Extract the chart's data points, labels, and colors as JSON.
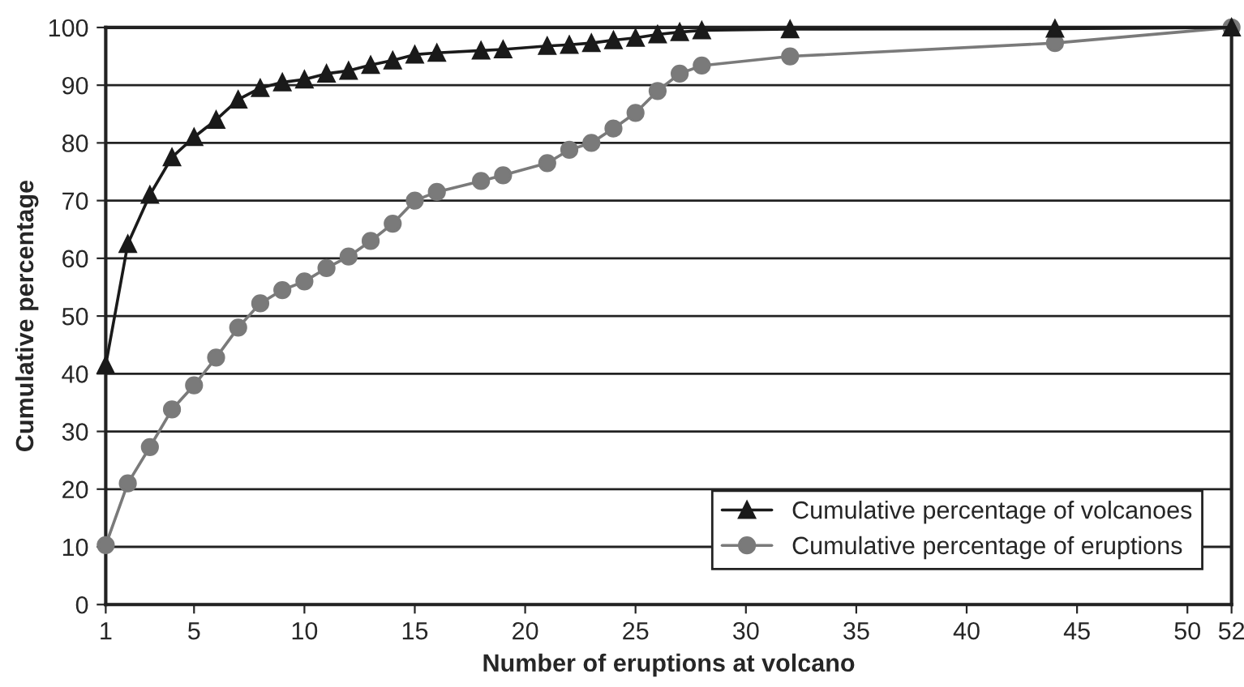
{
  "chart_data": {
    "type": "line",
    "xlabel": "Number of eruptions at volcano",
    "ylabel": "Cumulative percentage",
    "x": [
      1,
      2,
      3,
      4,
      5,
      6,
      7,
      8,
      9,
      10,
      11,
      12,
      13,
      14,
      15,
      16,
      18,
      19,
      21,
      22,
      23,
      24,
      25,
      26,
      27,
      28,
      32,
      44,
      52
    ],
    "series": [
      {
        "name": "Cumulative percentage of volcanoes",
        "color": "#1a1a1a",
        "marker": "triangle",
        "values": [
          41.5,
          62.5,
          71,
          77.5,
          81,
          84,
          87.5,
          89.5,
          90.5,
          91,
          92,
          92.5,
          93.5,
          94.3,
          95.3,
          95.6,
          96,
          96.2,
          96.8,
          97,
          97.3,
          97.8,
          98.2,
          98.8,
          99.2,
          99.5,
          99.7,
          99.8,
          100
        ]
      },
      {
        "name": "Cumulative percentage of eruptions",
        "color": "#7a7a7a",
        "marker": "circle",
        "values": [
          10.3,
          21,
          27.3,
          33.8,
          38,
          42.8,
          48,
          52.2,
          54.5,
          56,
          58.3,
          60.3,
          63,
          66,
          70,
          71.5,
          73.4,
          74.4,
          76.5,
          78.8,
          80,
          82.5,
          85.2,
          89,
          92,
          93.4,
          95,
          97.3,
          100
        ]
      }
    ],
    "xlim": [
      1,
      52
    ],
    "xticks": [
      1,
      5,
      10,
      15,
      20,
      25,
      30,
      35,
      40,
      45,
      50,
      52
    ],
    "ylim": [
      0,
      100
    ],
    "yticks": [
      0,
      10,
      20,
      30,
      40,
      50,
      60,
      70,
      80,
      90,
      100
    ],
    "grid": "y",
    "legend": "bottom right",
    "line_style": "solid"
  }
}
